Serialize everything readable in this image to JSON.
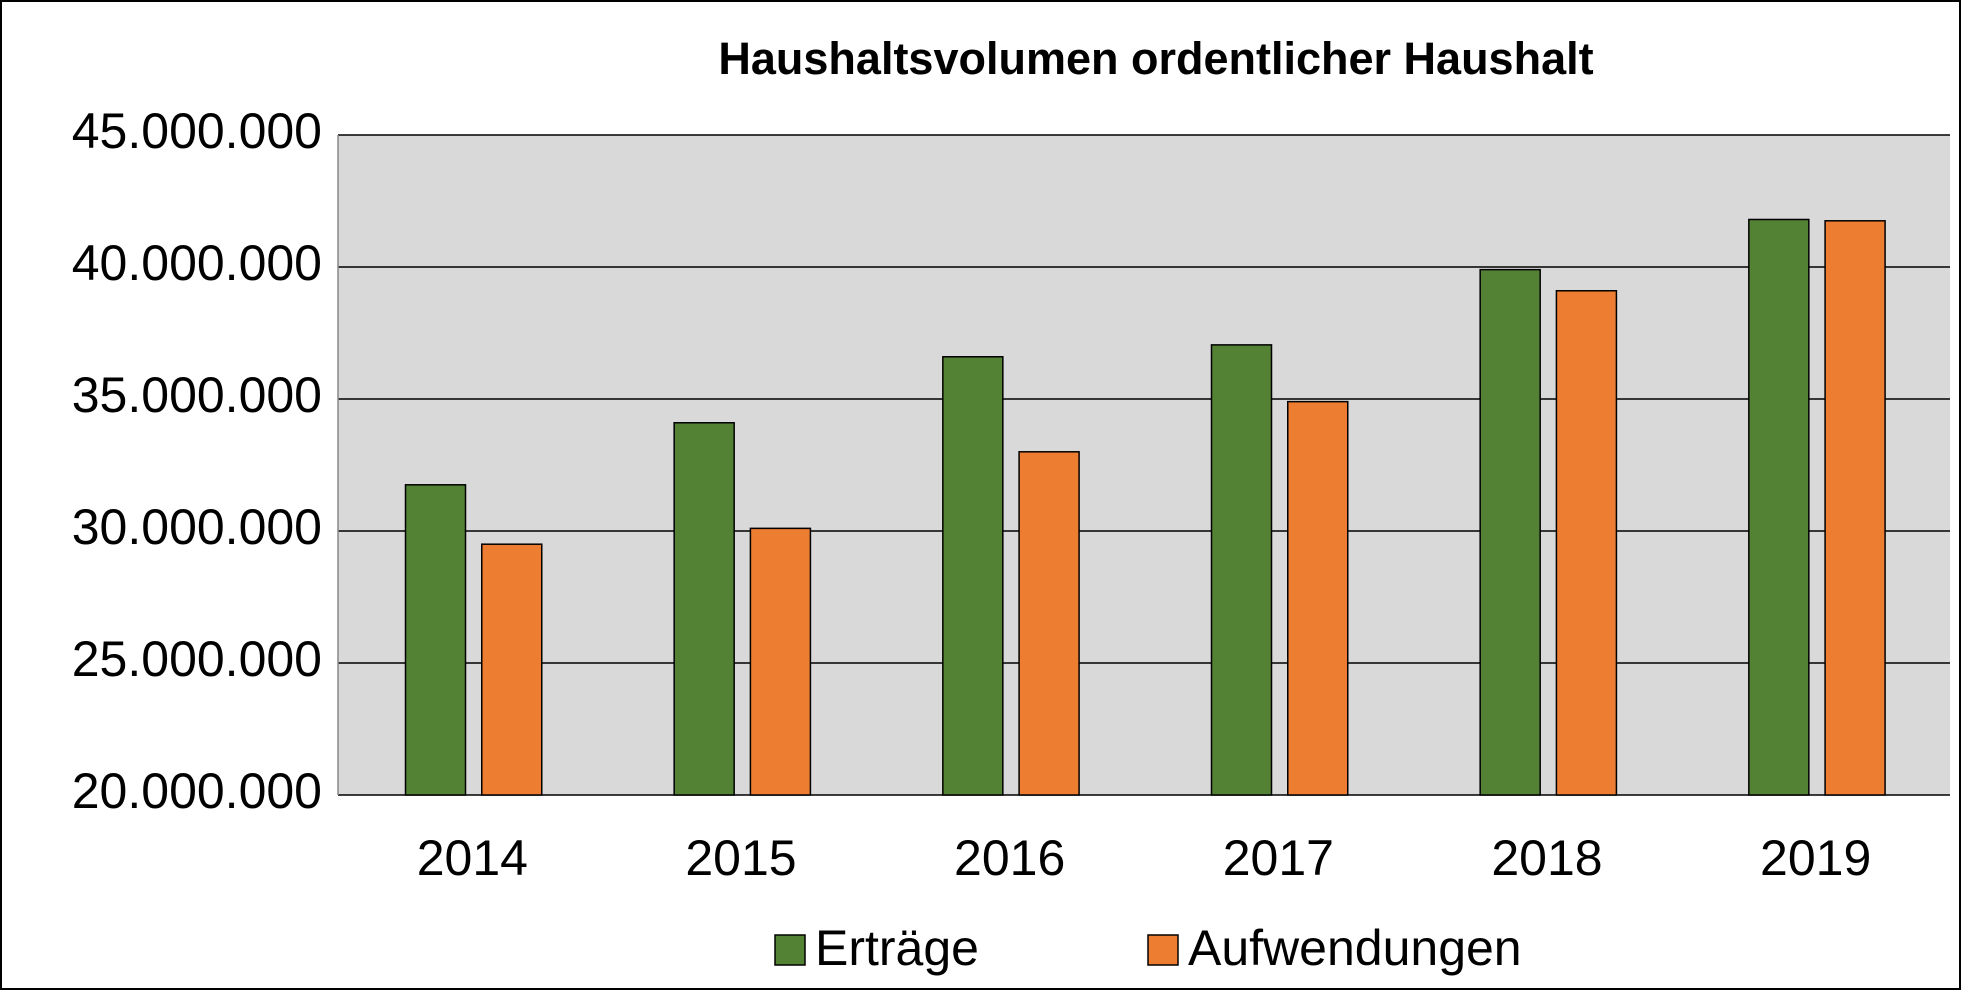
{
  "chart_data": {
    "type": "bar",
    "title": "Haushaltsvolumen ordentlicher Haushalt",
    "categories": [
      "2014",
      "2015",
      "2016",
      "2017",
      "2018",
      "2019"
    ],
    "series": [
      {
        "name": "Erträge",
        "color": "#548235",
        "values": [
          31750000,
          34100000,
          36600000,
          37050000,
          39900000,
          41800000
        ]
      },
      {
        "name": "Aufwendungen",
        "color": "#ed7d31",
        "values": [
          29500000,
          30100000,
          33000000,
          34900000,
          39100000,
          41750000
        ]
      }
    ],
    "ylim": [
      20000000,
      45000000
    ],
    "yticks": [
      {
        "value": 20000000,
        "label": "20.000.000"
      },
      {
        "value": 25000000,
        "label": "25.000.000"
      },
      {
        "value": 30000000,
        "label": "30.000.000"
      },
      {
        "value": 35000000,
        "label": "35.000.000"
      },
      {
        "value": 40000000,
        "label": "40.000.000"
      },
      {
        "value": 45000000,
        "label": "45.000.000"
      }
    ],
    "grid": true,
    "legend": "bottom"
  }
}
